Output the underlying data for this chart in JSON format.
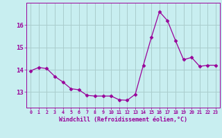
{
  "x": [
    0,
    1,
    2,
    3,
    4,
    5,
    6,
    7,
    8,
    9,
    10,
    11,
    12,
    13,
    14,
    15,
    16,
    17,
    18,
    19,
    20,
    21,
    22,
    23
  ],
  "y": [
    13.95,
    14.1,
    14.05,
    13.7,
    13.45,
    13.15,
    13.1,
    12.85,
    12.82,
    12.82,
    12.82,
    12.65,
    12.63,
    12.9,
    14.2,
    15.45,
    16.6,
    16.2,
    15.3,
    14.45,
    14.55,
    14.15,
    14.2,
    14.2
  ],
  "line_color": "#990099",
  "marker": "D",
  "marker_size": 2.5,
  "bg_color": "#C8EEF0",
  "grid_color": "#AACCCC",
  "xlabel": "Windchill (Refroidissement éolien,°C)",
  "xlabel_color": "#990099",
  "ylabel_ticks": [
    13,
    14,
    15,
    16
  ],
  "xtick_labels": [
    "0",
    "1",
    "2",
    "3",
    "4",
    "5",
    "6",
    "7",
    "8",
    "9",
    "10",
    "11",
    "12",
    "13",
    "14",
    "15",
    "16",
    "17",
    "18",
    "19",
    "20",
    "21",
    "22",
    "23"
  ],
  "ylim": [
    12.3,
    17.0
  ],
  "xlim": [
    -0.5,
    23.5
  ],
  "tick_color": "#990099",
  "axis_color": "#990099",
  "font_family": "monospace"
}
